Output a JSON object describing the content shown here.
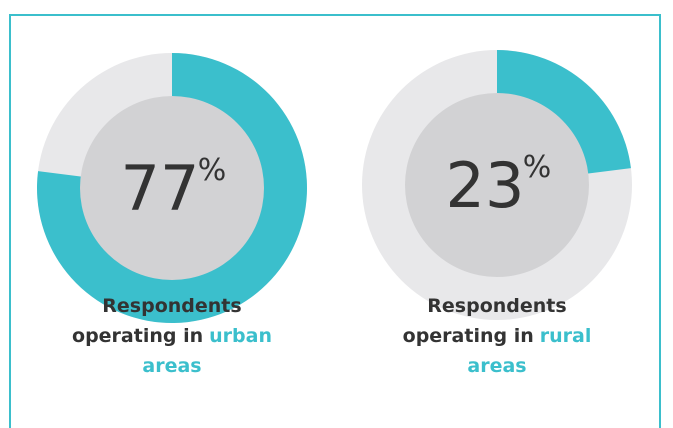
{
  "chart_data": [
    {
      "type": "donut",
      "value": 77,
      "unit": "%",
      "color": "#3bbfcc",
      "track_color": "#e8e8ea",
      "center_color": "#d2d2d4",
      "label": [
        "Respondents",
        "operating in",
        "urban",
        "areas"
      ]
    },
    {
      "type": "donut",
      "value": 23,
      "unit": "%",
      "color": "#3bbfcc",
      "track_color": "#e8e8ea",
      "center_color": "#d2d2d4",
      "label": [
        "Respondents",
        "operating in",
        "rural",
        "areas"
      ]
    }
  ]
}
